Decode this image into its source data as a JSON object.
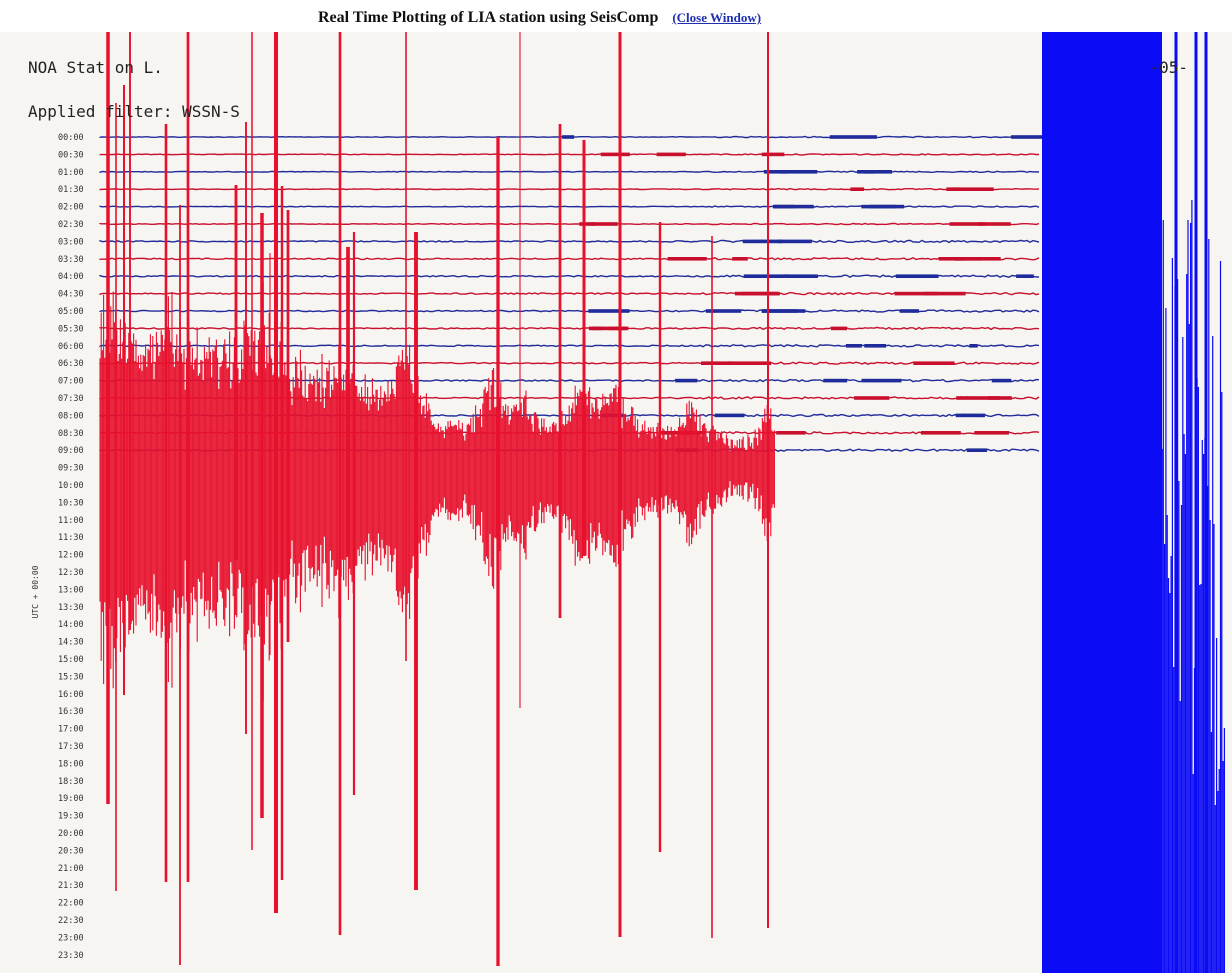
{
  "window": {
    "title": "Real Time Plotting of LIA station using SeisComp",
    "close_link": "(Close Window)"
  },
  "header": {
    "station": "NOA Stat on L.",
    "filter": "Applied filter: WSSN-S",
    "date_fragment": "-05-"
  },
  "chart_data": {
    "type": "helicorder",
    "ylabel": "UTC + 00:00",
    "tick_labels": [
      "00:00",
      "00:30",
      "01:00",
      "01:30",
      "02:00",
      "02:30",
      "03:00",
      "03:30",
      "04:00",
      "04:30",
      "05:00",
      "05:30",
      "06:00",
      "06:30",
      "07:00",
      "07:30",
      "08:00",
      "08:30",
      "09:00",
      "09:30",
      "10:00",
      "10:30",
      "11:00",
      "11:30",
      "12:00",
      "12:30",
      "13:00",
      "13:30",
      "14:00",
      "14:30",
      "15:00",
      "15:30",
      "16:00",
      "16:30",
      "17:00",
      "17:30",
      "18:00",
      "18:30",
      "19:00",
      "19:30",
      "20:00",
      "20:30",
      "21:00",
      "21:30",
      "22:00",
      "22:30",
      "23:00",
      "23:30"
    ],
    "recorded_rows": 19,
    "colors": {
      "trace_a": "#1f2b9a",
      "trace_b": "#c8102e",
      "burst_red": "#e8102c",
      "blue_block": "#0b0bf5",
      "background": "#f6f5f2"
    }
  }
}
